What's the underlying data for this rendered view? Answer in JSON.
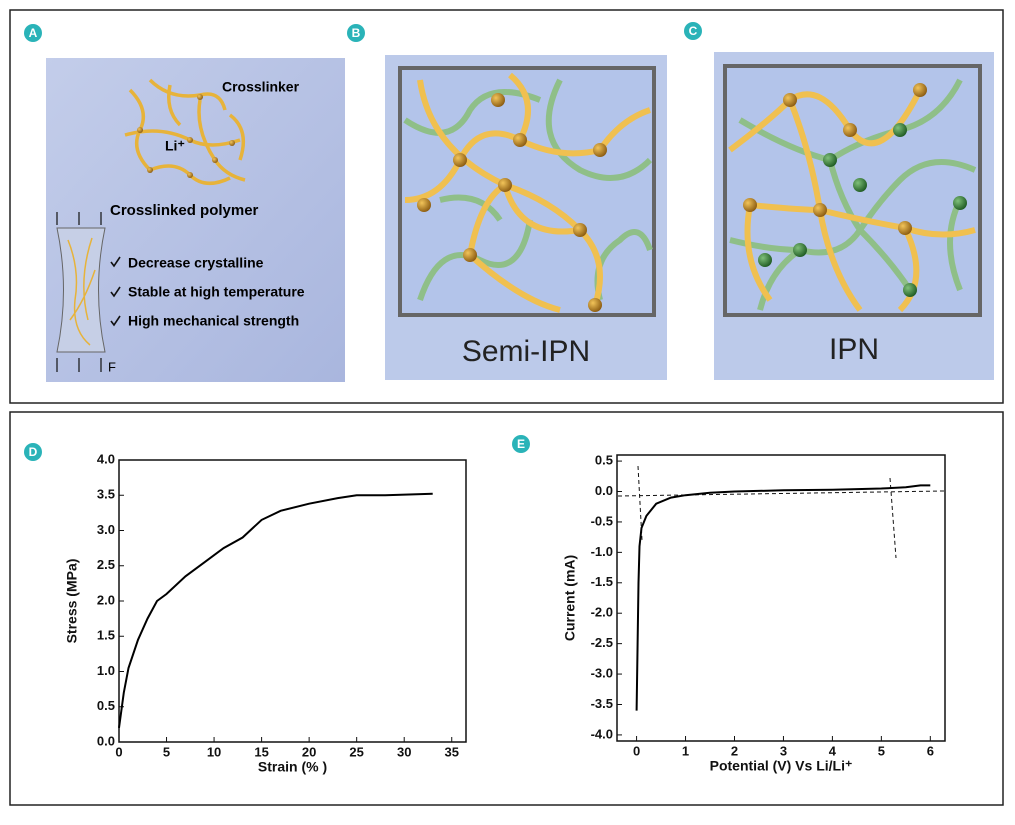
{
  "panels": {
    "a": {
      "label": "A",
      "crosslinker": "Crosslinker",
      "ion": "Li⁺",
      "caption": "Crosslinked polymer",
      "points": [
        "Decrease crystalline",
        "Stable at high temperature",
        "High mechanical strength"
      ],
      "force": "F"
    },
    "b": {
      "label": "B",
      "caption": "Semi-IPN"
    },
    "c": {
      "label": "C",
      "caption": "IPN"
    },
    "d": {
      "label": "D"
    },
    "e": {
      "label": "E"
    }
  },
  "chart_data": [
    {
      "type": "line",
      "xlabel": "Strain (% )",
      "ylabel": "Stress (MPa)",
      "color": "#000000",
      "x": [
        0,
        0.5,
        1,
        2,
        3,
        4,
        5,
        7,
        9,
        11,
        13,
        15,
        17,
        20,
        23,
        25,
        28,
        33
      ],
      "values": [
        0.2,
        0.7,
        1.05,
        1.45,
        1.75,
        2.0,
        2.1,
        2.35,
        2.55,
        2.75,
        2.9,
        3.15,
        3.28,
        3.38,
        3.46,
        3.5,
        3.5,
        3.52
      ],
      "xlim": [
        0,
        36.5
      ],
      "ylim": [
        0,
        4.0
      ],
      "xticks": [
        0,
        5,
        10,
        15,
        20,
        25,
        30,
        35
      ],
      "yticks": [
        {
          "value": 0,
          "label": "0.0"
        },
        0.5,
        {
          "value": 1,
          "label": "1.0"
        },
        1.5,
        {
          "value": 2,
          "label": "2.0"
        },
        2.5,
        {
          "value": 3,
          "label": "3.0"
        },
        3.5,
        {
          "value": 4,
          "label": "4.0"
        }
      ]
    },
    {
      "type": "line",
      "xlabel": "Potential (V) Vs Li/Li⁺",
      "ylabel": "Current (mA)",
      "color": "#000000",
      "x": [
        0,
        0.02,
        0.04,
        0.06,
        0.1,
        0.2,
        0.4,
        0.7,
        1,
        1.5,
        2,
        3,
        4,
        5,
        5.5,
        5.8,
        6
      ],
      "values": [
        -3.6,
        -2.5,
        -1.5,
        -0.9,
        -0.6,
        -0.4,
        -0.2,
        -0.1,
        -0.06,
        -0.02,
        0.0,
        0.02,
        0.03,
        0.05,
        0.07,
        0.1,
        0.1
      ],
      "xlim": [
        -0.4,
        6.3
      ],
      "ylim": [
        -4.1,
        0.6
      ],
      "xticks": [
        0,
        1,
        2,
        3,
        4,
        5,
        6
      ],
      "yticks": [
        0.5,
        {
          "value": 0,
          "label": "0.0"
        },
        -0.5,
        {
          "value": -1,
          "label": "-1.0"
        },
        -1.5,
        {
          "value": -2,
          "label": "-2.0"
        },
        -2.5,
        {
          "value": -3,
          "label": "-3.0"
        },
        -3.5,
        {
          "value": -4,
          "label": "-4.0"
        }
      ]
    }
  ]
}
